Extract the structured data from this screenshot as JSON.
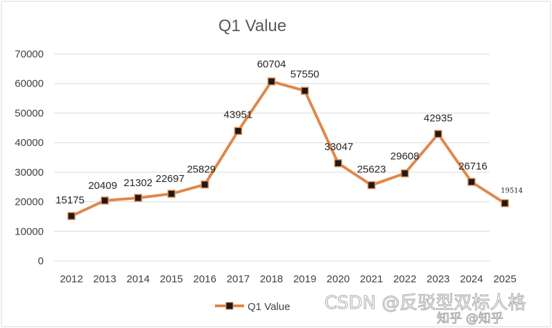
{
  "chart_data": {
    "type": "line",
    "title": "Q1 Value",
    "xlabel": "",
    "ylabel": "",
    "categories": [
      "2012",
      "2013",
      "2014",
      "2015",
      "2016",
      "2017",
      "2018",
      "2019",
      "2020",
      "2021",
      "2022",
      "2023",
      "2024",
      "2025"
    ],
    "series": [
      {
        "name": "Q1 Value",
        "values": [
          15175,
          20409,
          21302,
          22697,
          25829,
          43951,
          60704,
          57550,
          33047,
          25623,
          29608,
          42935,
          26716,
          19514
        ],
        "color": "#E0874A",
        "marker_color": "#1a1a1a"
      }
    ],
    "data_labels": [
      "15175",
      "20409",
      "21302",
      "22697",
      "25829",
      "43951",
      "60704",
      "57550",
      "33047",
      "25623",
      "29608",
      "42935",
      "26716",
      "19514"
    ],
    "yticks": [
      "0",
      "10000",
      "20000",
      "30000",
      "40000",
      "50000",
      "60000",
      "70000"
    ],
    "ylim": [
      0,
      70000
    ],
    "grid": true,
    "legend_position": "bottom"
  },
  "watermark": {
    "text": "CSDN @反驳型双标人格",
    "text2": "知乎 @知乎"
  },
  "colors": {
    "line": "#E0874A",
    "grid": "#d9d9d9",
    "frame": "#d9d9d9"
  }
}
